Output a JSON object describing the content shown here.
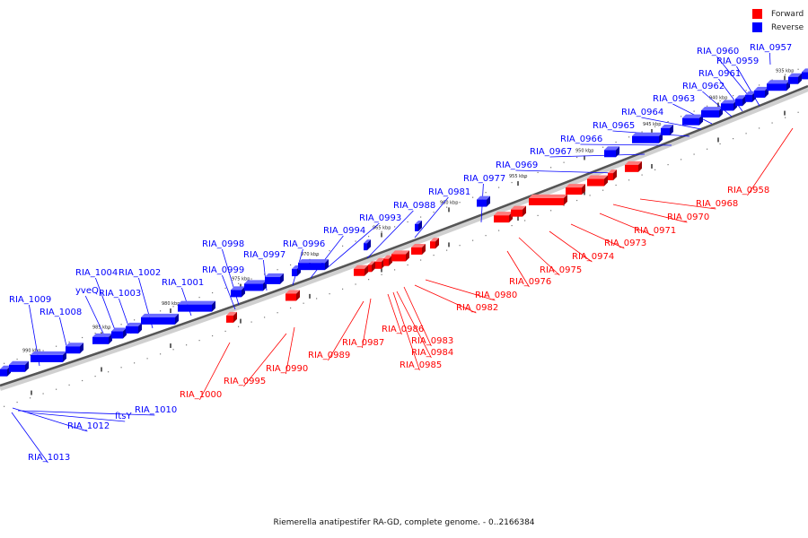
{
  "title": "Riemerella anatipestifer RA-GD, complete genome. - 0..2166384",
  "legend": {
    "forward_label": "Forward",
    "reverse_label": "Reverse",
    "forward_color": "#ff0000",
    "reverse_color": "#0000ff"
  },
  "ticks": [
    "935 kbp",
    "940 kbp",
    "945 kbp",
    "950 kbp",
    "955 kbp",
    "960 kbp",
    "965 kbp",
    "970 kbp",
    "975 kbp",
    "980 kbp",
    "985 kbp",
    "990 kbp"
  ],
  "reverse_genes": [
    "RIA_0957",
    "RIA_0960",
    "RIA_0959",
    "RIA_0961",
    "RIA_0962",
    "RIA_0963",
    "RIA_0964",
    "RIA_0965",
    "RIA_0966",
    "RIA_0967",
    "RIA_0969",
    "RIA_0977",
    "RIA_0981",
    "RIA_0988",
    "RIA_0993",
    "RIA_0994",
    "RIA_0996",
    "RIA_0997",
    "RIA_0998",
    "RIA_0999",
    "RIA_1001",
    "RIA_1002",
    "RIA_1003",
    "RIA_1004",
    "yveQ",
    "RIA_1008",
    "RIA_1009"
  ],
  "forward_genes": [
    "RIA_0958",
    "RIA_0968",
    "RIA_0970",
    "RIA_0971",
    "RIA_0973",
    "RIA_0974",
    "RIA_0975",
    "RIA_0976",
    "RIA_0980",
    "RIA_0982",
    "RIA_0983",
    "RIA_0984",
    "RIA_0985",
    "RIA_0986",
    "RIA_0987",
    "RIA_0989",
    "RIA_0990",
    "RIA_0995",
    "RIA_1000"
  ],
  "other_genes": [
    "RIA_1010",
    "ftsY",
    "RIA_1012",
    "RIA_1013"
  ]
}
